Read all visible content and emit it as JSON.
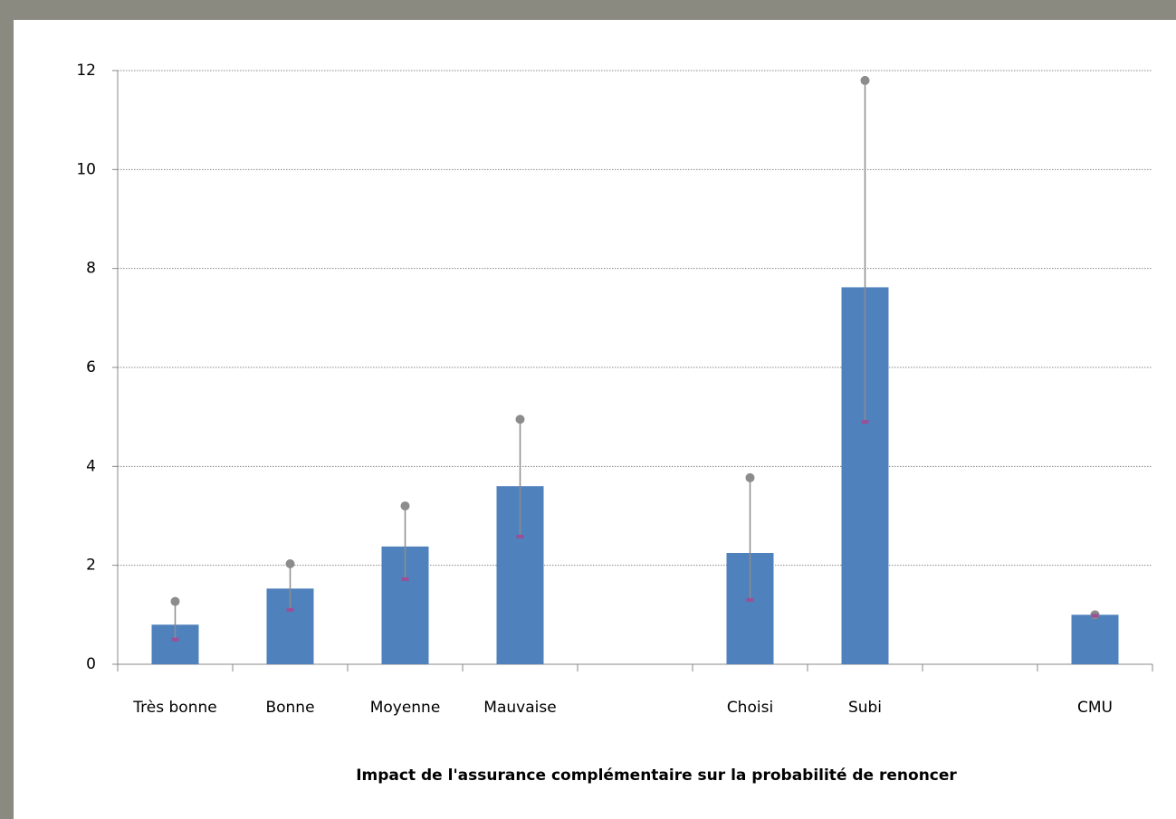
{
  "chart_data": {
    "type": "bar",
    "x_label": "Impact de l'assurance complémentaire sur la probabilité de renoncer",
    "categories": [
      "Très bonne",
      "Bonne",
      "Moyenne",
      "Mauvaise",
      null,
      "Choisi",
      "Subi",
      null,
      "CMU"
    ],
    "values": [
      0.8,
      1.53,
      2.38,
      3.6,
      null,
      2.25,
      7.62,
      null,
      1.0
    ],
    "low": [
      0.5,
      1.1,
      1.72,
      2.58,
      null,
      1.3,
      4.9,
      null,
      0.98
    ],
    "high": [
      1.27,
      2.03,
      3.2,
      4.95,
      null,
      3.77,
      11.8,
      null,
      1.0
    ],
    "color": "#4f81bd",
    "error_color": "#8c8c8c",
    "low_color": "#9b4f96",
    "ylim": [
      0,
      12
    ],
    "yticks": [
      0,
      2,
      4,
      6,
      8,
      10,
      12
    ],
    "grid": true
  }
}
